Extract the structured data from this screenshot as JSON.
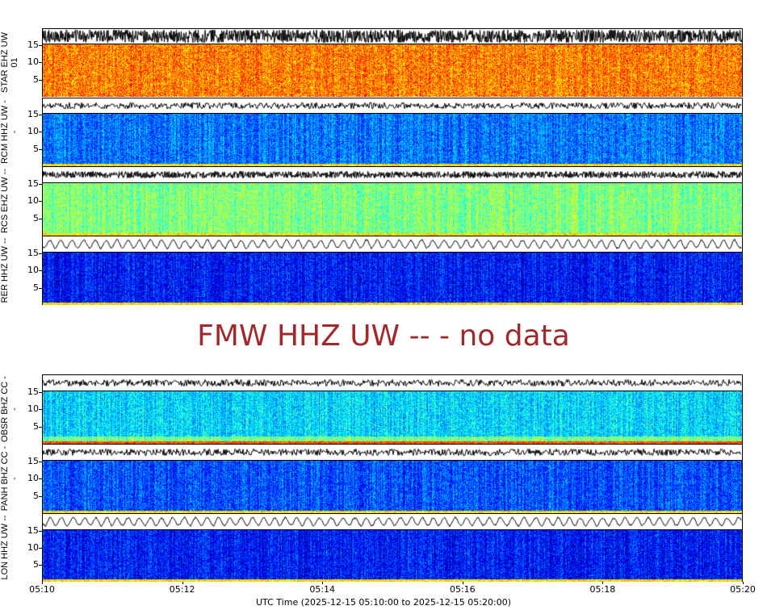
{
  "chart_data": {
    "type": "heatmap",
    "xlabel": "UTC Time (2025-12-15 05:10:00 to 2025-12-15 05:20:00)",
    "xlim": [
      "05:10",
      "05:20"
    ],
    "xticks": [
      "05:10",
      "05:12",
      "05:14",
      "05:16",
      "05:18",
      "05:20"
    ],
    "panels": [
      {
        "station": "STAR EHZ UW 01",
        "ylim": [
          0,
          15.5
        ],
        "yticks": [
          "5",
          "10",
          "15"
        ],
        "colormap": "hot",
        "level": 0.5
      },
      {
        "station": "RCM HHZ UW --",
        "ylim": [
          0,
          15.5
        ],
        "yticks": [
          "5",
          "10",
          "15"
        ],
        "colormap": "jet",
        "level": 0.24
      },
      {
        "station": "RCS EHZ UW --",
        "ylim": [
          0,
          15.5
        ],
        "yticks": [
          "5",
          "10",
          "15"
        ],
        "colormap": "jet",
        "level": 0.5
      },
      {
        "station": "RER HHZ UW --",
        "ylim": [
          0,
          15.5
        ],
        "yticks": [
          "5",
          "10",
          "15"
        ],
        "colormap": "jet",
        "level": 0.14
      },
      {
        "station": "FMW HHZ UW --",
        "no_data_text": "FMW HHZ UW -- - no data",
        "no_data_color": "#a2282c"
      },
      {
        "station": "OBSR BHZ CC --",
        "ylim": [
          0,
          15.5
        ],
        "yticks": [
          "5",
          "10",
          "15"
        ],
        "colormap": "jet",
        "level": 0.34
      },
      {
        "station": "PANH BHZ CC --",
        "ylim": [
          0,
          15.5
        ],
        "yticks": [
          "5",
          "10",
          "15"
        ],
        "colormap": "jet",
        "level": 0.2
      },
      {
        "station": "LON HHZ UW --",
        "ylim": [
          0,
          15.5
        ],
        "yticks": [
          "5",
          "10",
          "15"
        ],
        "colormap": "jet",
        "level": 0.14
      }
    ]
  }
}
